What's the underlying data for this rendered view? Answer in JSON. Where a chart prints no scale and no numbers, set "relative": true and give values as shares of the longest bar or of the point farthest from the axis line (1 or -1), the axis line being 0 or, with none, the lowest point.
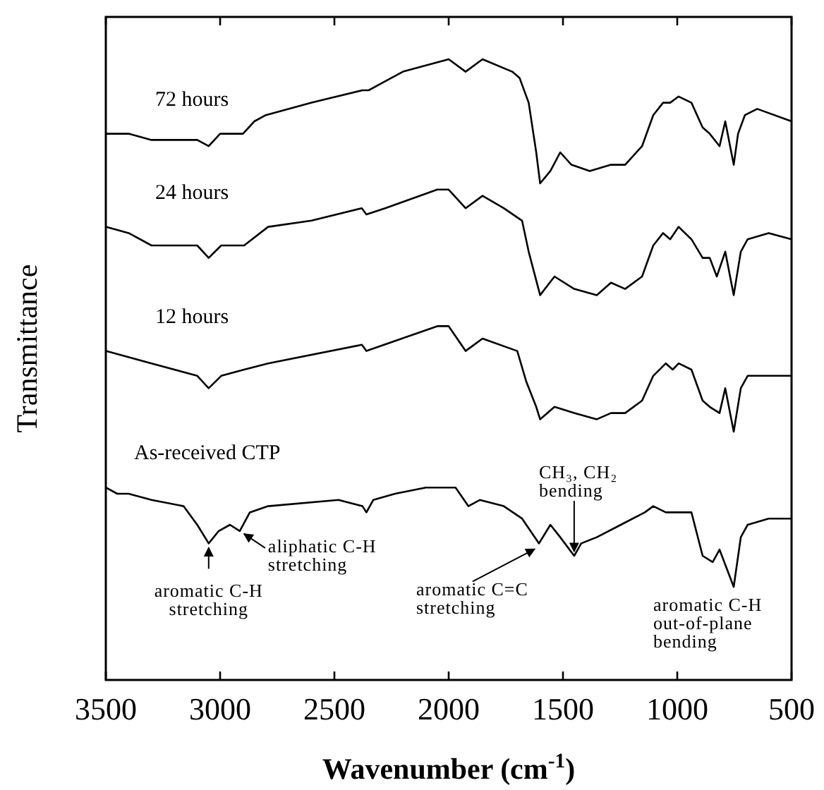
{
  "chart_data": {
    "type": "line",
    "relative": true,
    "xlabel": "Wavenumber (cm$^{-1}$)",
    "ylabel": "Transmittance",
    "xlim": [
      3500,
      500
    ],
    "xticks": [
      3500,
      3000,
      2500,
      2000,
      1500,
      1000,
      500
    ],
    "legend": false,
    "grid": false,
    "marker": "none",
    "line_style": "solid",
    "series": [
      {
        "name": "72 hours",
        "color": "#000000",
        "x": [
          3500,
          3400,
          3300,
          3200,
          3100,
          3050,
          3000,
          2950,
          2900,
          2850,
          2800,
          2600,
          2378,
          2350,
          2300,
          2200,
          2100,
          2000,
          1926,
          1852,
          1722,
          1690,
          1650,
          1617,
          1600,
          1555,
          1512,
          1463,
          1383,
          1290,
          1228,
          1154,
          1105,
          1062,
          1031,
          994,
          938,
          889,
          858,
          815,
          790,
          753,
          734,
          704,
          650,
          500
        ],
        "values": [
          0.88,
          0.88,
          0.87,
          0.87,
          0.87,
          0.86,
          0.88,
          0.88,
          0.88,
          0.9,
          0.91,
          0.93,
          0.95,
          0.95,
          0.96,
          0.98,
          0.99,
          1.0,
          0.98,
          1.0,
          0.98,
          0.97,
          0.93,
          0.85,
          0.8,
          0.82,
          0.85,
          0.83,
          0.82,
          0.83,
          0.83,
          0.86,
          0.91,
          0.93,
          0.93,
          0.94,
          0.93,
          0.89,
          0.88,
          0.86,
          0.9,
          0.83,
          0.88,
          0.91,
          0.92,
          0.9
        ]
      },
      {
        "name": "24 hours",
        "color": "#000000",
        "x": [
          3500,
          3400,
          3300,
          3100,
          3050,
          2995,
          2895,
          2790,
          2600,
          2380,
          2360,
          2278,
          2050,
          2000,
          1926,
          1852,
          1759,
          1679,
          1650,
          1600,
          1537,
          1451,
          1352,
          1290,
          1228,
          1154,
          1105,
          1062,
          1031,
          994,
          938,
          889,
          858,
          827,
          790,
          753,
          722,
          692,
          600,
          500
        ],
        "values": [
          0.73,
          0.72,
          0.7,
          0.7,
          0.68,
          0.7,
          0.7,
          0.73,
          0.74,
          0.76,
          0.75,
          0.76,
          0.79,
          0.79,
          0.76,
          0.78,
          0.76,
          0.74,
          0.69,
          0.62,
          0.65,
          0.63,
          0.62,
          0.64,
          0.63,
          0.65,
          0.7,
          0.72,
          0.71,
          0.73,
          0.71,
          0.68,
          0.68,
          0.65,
          0.69,
          0.62,
          0.69,
          0.71,
          0.72,
          0.71
        ]
      },
      {
        "name": "12 hours",
        "color": "#000000",
        "x": [
          3500,
          3300,
          3100,
          3050,
          2995,
          2895,
          2790,
          2380,
          2360,
          2050,
          2000,
          1926,
          1852,
          1700,
          1660,
          1617,
          1600,
          1537,
          1451,
          1352,
          1290,
          1228,
          1154,
          1105,
          1050,
          1020,
          994,
          938,
          889,
          858,
          815,
          790,
          753,
          722,
          692,
          600,
          500
        ],
        "values": [
          0.53,
          0.51,
          0.49,
          0.47,
          0.49,
          0.5,
          0.51,
          0.54,
          0.53,
          0.57,
          0.57,
          0.53,
          0.55,
          0.53,
          0.48,
          0.44,
          0.42,
          0.44,
          0.43,
          0.42,
          0.43,
          0.43,
          0.45,
          0.49,
          0.51,
          0.5,
          0.51,
          0.5,
          0.45,
          0.44,
          0.43,
          0.47,
          0.4,
          0.47,
          0.49,
          0.49,
          0.49
        ]
      },
      {
        "name": "As-received CTP",
        "color": "#000000",
        "x": [
          3500,
          3450,
          3400,
          3300,
          3160,
          3100,
          3050,
          3006,
          2957,
          2914,
          2870,
          2790,
          2482,
          2377,
          2360,
          2330,
          2235,
          2100,
          1970,
          1914,
          1864,
          1759,
          1679,
          1605,
          1555,
          1512,
          1451,
          1420,
          1352,
          1247,
          1142,
          1105,
          1050,
          988,
          938,
          889,
          845,
          815,
          753,
          722,
          692,
          600,
          500
        ],
        "values": [
          0.31,
          0.3,
          0.3,
          0.29,
          0.28,
          0.25,
          0.22,
          0.24,
          0.25,
          0.24,
          0.27,
          0.28,
          0.29,
          0.28,
          0.27,
          0.29,
          0.3,
          0.31,
          0.31,
          0.28,
          0.29,
          0.28,
          0.26,
          0.22,
          0.25,
          0.23,
          0.2,
          0.22,
          0.23,
          0.25,
          0.27,
          0.28,
          0.27,
          0.27,
          0.27,
          0.2,
          0.19,
          0.21,
          0.15,
          0.23,
          0.25,
          0.26,
          0.26
        ]
      }
    ],
    "annotations": [
      {
        "text": "aromatic C-H\nstretching",
        "x": 3050,
        "y": 0.22
      },
      {
        "text": "aliphatic C-H\nstretching",
        "x": 2914,
        "y": 0.24
      },
      {
        "text": "aromatic C=C\nstretching",
        "x": 1605,
        "y": 0.22
      },
      {
        "text": "CH₃, CH₂\nbending",
        "x": 1451,
        "y": 0.2
      },
      {
        "text": "aromatic C-H\nout-of-plane\nbending",
        "x": 753,
        "y": 0.15
      }
    ]
  }
}
